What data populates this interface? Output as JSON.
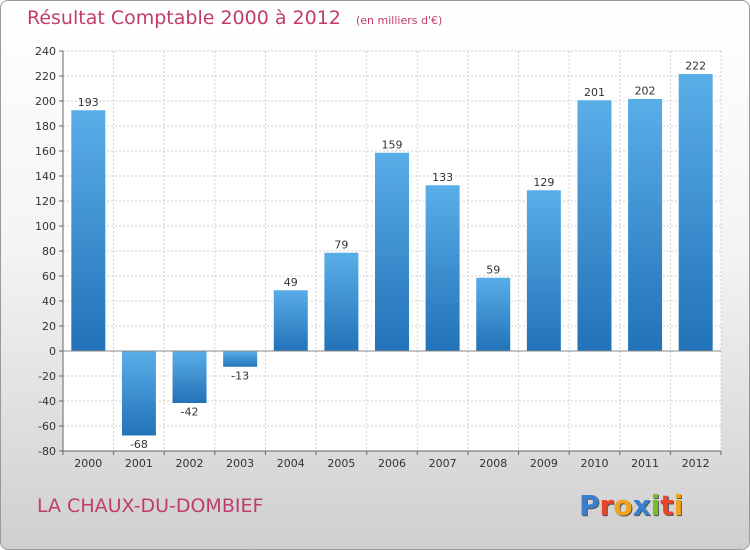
{
  "chart_data": {
    "type": "bar",
    "title": "Résultat Comptable 2000 à 2012",
    "subtitle": "(en milliers d'€)",
    "categories": [
      "2000",
      "2001",
      "2002",
      "2003",
      "2004",
      "2005",
      "2006",
      "2007",
      "2008",
      "2009",
      "2010",
      "2011",
      "2012"
    ],
    "values": [
      193,
      -68,
      -42,
      -13,
      49,
      79,
      159,
      133,
      59,
      129,
      201,
      202,
      222
    ],
    "data_labels": [
      "193",
      "-68",
      "-42",
      "-13",
      "49",
      "79",
      "159",
      "133",
      "59",
      "129",
      "201",
      "202",
      "222"
    ],
    "ylim": [
      -80,
      240
    ],
    "yticks": [
      "-80",
      "-60",
      "-40",
      "-20",
      "0",
      "20",
      "40",
      "60",
      "80",
      "100",
      "120",
      "140",
      "160",
      "180",
      "200",
      "220",
      "240"
    ],
    "grid": true,
    "colors": {
      "bar_light": "#5aaee8",
      "bar_dark": "#2272b8",
      "grid": "#cfcfcf"
    }
  },
  "footer": {
    "commune": "LA CHAUX-DU-DOMBIEF",
    "logo_letters": [
      "P",
      "r",
      "o",
      "x",
      "i",
      "t",
      "i"
    ],
    "logo_colors": [
      "#3a7fd0",
      "#e8452c",
      "#f3a21b",
      "#3a7fd0",
      "#7cbd2a",
      "#e8452c",
      "#f3a21b"
    ]
  }
}
